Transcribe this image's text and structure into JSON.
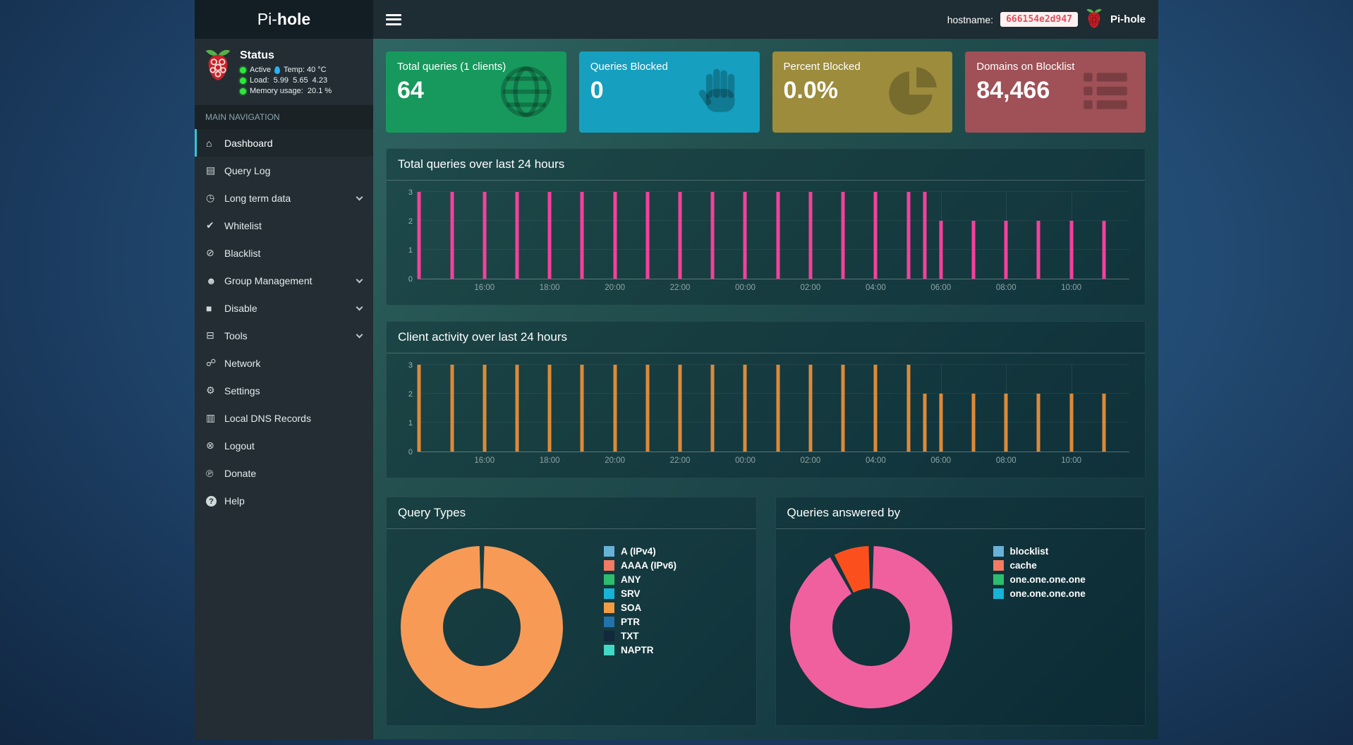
{
  "header": {
    "logo_regular": "Pi-",
    "logo_bold": "hole",
    "hostname_label": "hostname:",
    "hostname_value": "666154e2d947",
    "brand": "Pi-hole"
  },
  "sidebar": {
    "status": {
      "title": "Status",
      "active": "Active",
      "temperature": "Temp: 40 °C",
      "load": "Load:  5.99  5.65  4.23",
      "memory": "Memory usage:  20.1 %"
    },
    "nav_header": "MAIN NAVIGATION",
    "items": [
      {
        "label": "Dashboard",
        "icon": "home",
        "active": true
      },
      {
        "label": "Query Log",
        "icon": "file-alt"
      },
      {
        "label": "Long term data",
        "icon": "clock",
        "expandable": true
      },
      {
        "label": "Whitelist",
        "icon": "check-circle"
      },
      {
        "label": "Blacklist",
        "icon": "ban"
      },
      {
        "label": "Group Management",
        "icon": "users",
        "expandable": true
      },
      {
        "label": "Disable",
        "icon": "stop",
        "expandable": true
      },
      {
        "label": "Tools",
        "icon": "folder",
        "expandable": true
      },
      {
        "label": "Network",
        "icon": "network-wired"
      },
      {
        "label": "Settings",
        "icon": "cogs"
      },
      {
        "label": "Local DNS Records",
        "icon": "address-book"
      },
      {
        "label": "Logout",
        "icon": "user-times"
      },
      {
        "label": "Donate",
        "icon": "paypal"
      },
      {
        "label": "Help",
        "icon": "question-circle"
      }
    ]
  },
  "cards": [
    {
      "title": "Total queries (1 clients)",
      "value": "64",
      "color": "#17995e",
      "icon": "globe"
    },
    {
      "title": "Queries Blocked",
      "value": "0",
      "color": "#169fbe",
      "icon": "hand"
    },
    {
      "title": "Percent Blocked",
      "value": "0.0%",
      "color": "#9c8c3c",
      "icon": "pie-chart"
    },
    {
      "title": "Domains on Blocklist",
      "value": "84,466",
      "color": "#9f5157",
      "icon": "list"
    }
  ],
  "chart_data": [
    {
      "type": "bar",
      "title": "Total queries over last 24 hours",
      "color": "#f6409c",
      "ylim": [
        0,
        3
      ],
      "yticks": [
        0,
        1,
        2,
        3
      ],
      "xticks": [
        "16:00",
        "18:00",
        "20:00",
        "22:00",
        "00:00",
        "02:00",
        "04:00",
        "06:00",
        "08:00",
        "10:00"
      ],
      "bars": [
        {
          "t": "14:00",
          "v": 3
        },
        {
          "t": "15:00",
          "v": 3
        },
        {
          "t": "16:00",
          "v": 3
        },
        {
          "t": "17:00",
          "v": 3
        },
        {
          "t": "18:00",
          "v": 3
        },
        {
          "t": "19:00",
          "v": 3
        },
        {
          "t": "20:00",
          "v": 3
        },
        {
          "t": "21:00",
          "v": 3
        },
        {
          "t": "22:00",
          "v": 3
        },
        {
          "t": "23:00",
          "v": 3
        },
        {
          "t": "00:00",
          "v": 3
        },
        {
          "t": "01:00",
          "v": 3
        },
        {
          "t": "02:00",
          "v": 3
        },
        {
          "t": "03:00",
          "v": 3
        },
        {
          "t": "04:00",
          "v": 3
        },
        {
          "t": "05:00",
          "v": 3
        },
        {
          "t": "05:30",
          "v": 3
        },
        {
          "t": "06:00",
          "v": 2
        },
        {
          "t": "07:00",
          "v": 2
        },
        {
          "t": "08:00",
          "v": 2
        },
        {
          "t": "09:00",
          "v": 2
        },
        {
          "t": "10:00",
          "v": 2
        },
        {
          "t": "11:00",
          "v": 2
        }
      ]
    },
    {
      "type": "bar",
      "title": "Client activity over last 24 hours",
      "color": "#dd8a3a",
      "ylim": [
        0,
        3
      ],
      "yticks": [
        0,
        1,
        2,
        3
      ],
      "xticks": [
        "16:00",
        "18:00",
        "20:00",
        "22:00",
        "00:00",
        "02:00",
        "04:00",
        "06:00",
        "08:00",
        "10:00"
      ],
      "bars": [
        {
          "t": "14:00",
          "v": 3
        },
        {
          "t": "15:00",
          "v": 3
        },
        {
          "t": "16:00",
          "v": 3
        },
        {
          "t": "17:00",
          "v": 3
        },
        {
          "t": "18:00",
          "v": 3
        },
        {
          "t": "19:00",
          "v": 3
        },
        {
          "t": "20:00",
          "v": 3
        },
        {
          "t": "21:00",
          "v": 3
        },
        {
          "t": "22:00",
          "v": 3
        },
        {
          "t": "23:00",
          "v": 3
        },
        {
          "t": "00:00",
          "v": 3
        },
        {
          "t": "01:00",
          "v": 3
        },
        {
          "t": "02:00",
          "v": 3
        },
        {
          "t": "03:00",
          "v": 3
        },
        {
          "t": "04:00",
          "v": 3
        },
        {
          "t": "05:00",
          "v": 3
        },
        {
          "t": "05:30",
          "v": 2
        },
        {
          "t": "06:00",
          "v": 2
        },
        {
          "t": "07:00",
          "v": 2
        },
        {
          "t": "08:00",
          "v": 2
        },
        {
          "t": "09:00",
          "v": 2
        },
        {
          "t": "10:00",
          "v": 2
        },
        {
          "t": "11:00",
          "v": 2
        }
      ]
    },
    {
      "type": "donut",
      "title": "Query Types",
      "slices": [
        {
          "label": "SOA",
          "color": "#f79a56",
          "value": 100
        }
      ],
      "legend": [
        {
          "label": "A (IPv4)",
          "color": "#68b2d9"
        },
        {
          "label": "AAAA (IPv6)",
          "color": "#f47a63"
        },
        {
          "label": "ANY",
          "color": "#2dbd6e"
        },
        {
          "label": "SRV",
          "color": "#16b4d6"
        },
        {
          "label": "SOA",
          "color": "#f49c42"
        },
        {
          "label": "PTR",
          "color": "#2272ab"
        },
        {
          "label": "TXT",
          "color": "#12283c"
        },
        {
          "label": "NAPTR",
          "color": "#41d9c5"
        }
      ]
    },
    {
      "type": "donut",
      "title": "Queries answered by",
      "slices": [
        {
          "label": "one.one.one.one",
          "color": "#f0609f",
          "value": 92
        },
        {
          "label": "cache",
          "color": "#fb501d",
          "value": 8
        }
      ],
      "legend": [
        {
          "label": "blocklist",
          "color": "#68b2d9"
        },
        {
          "label": "cache",
          "color": "#f47a63"
        },
        {
          "label": "one.one.one.one",
          "color": "#2dbd6e"
        },
        {
          "label": "one.one.one.one",
          "color": "#16b4d6"
        }
      ]
    }
  ]
}
